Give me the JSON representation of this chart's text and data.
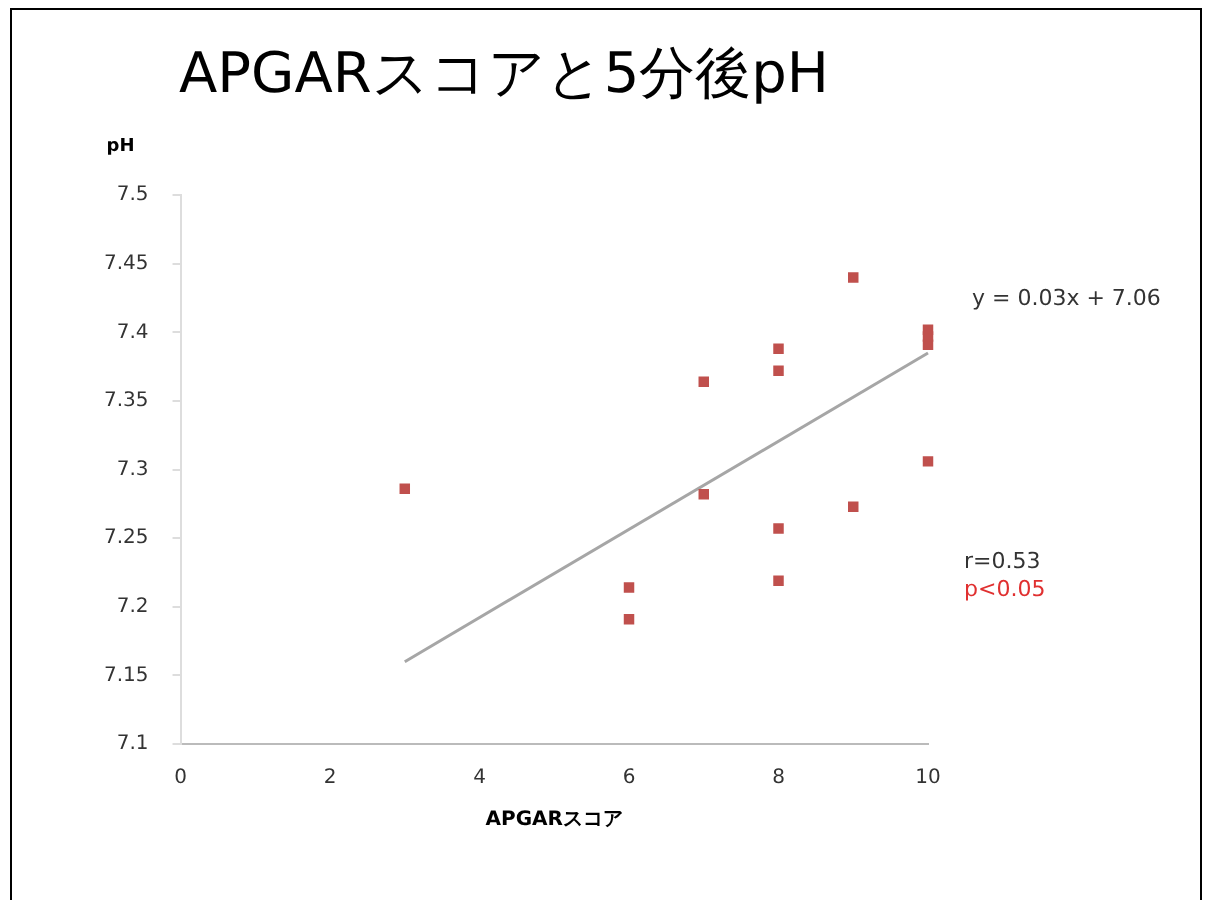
{
  "chart_data": {
    "type": "scatter",
    "title": "APGARスコアと5分後pH",
    "xlabel": "APGARスコア",
    "ylabel": "pH",
    "xlim": [
      0,
      10
    ],
    "xticks": [
      0,
      2,
      4,
      6,
      8,
      10
    ],
    "ylim": [
      7.1,
      7.5
    ],
    "yticks": [
      7.1,
      7.15,
      7.2,
      7.25,
      7.3,
      7.35,
      7.4,
      7.45,
      7.5
    ],
    "grid": false,
    "legend": false,
    "marker": "square",
    "series": [
      {
        "color": "#c0504d",
        "x": [
          3,
          6,
          6,
          7,
          7,
          8,
          8,
          8,
          8,
          9,
          9,
          10,
          10,
          10,
          10
        ],
        "values": [
          7.286,
          7.214,
          7.191,
          7.364,
          7.282,
          7.388,
          7.372,
          7.257,
          7.219,
          7.44,
          7.273,
          7.402,
          7.397,
          7.391,
          7.306
        ]
      },
      {
        "type": "line",
        "marker": "none",
        "color": "#a6a6a6",
        "x": [
          3,
          10
        ],
        "values": [
          7.16,
          7.385
        ]
      }
    ],
    "annotations": [
      "y = 0.03x + 7.06",
      "r=0.53",
      "p<0.05"
    ]
  }
}
